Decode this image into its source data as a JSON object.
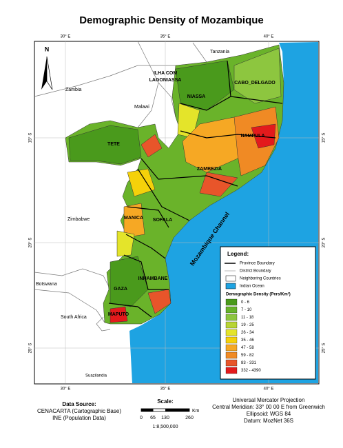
{
  "title": "Demographic Density of Mozambique",
  "graticule": {
    "lon": [
      "30° E",
      "35° E",
      "40° E"
    ],
    "lat": [
      "15° S",
      "20° S",
      "25° S"
    ]
  },
  "countries": {
    "tanzania": "Tanzania",
    "zambia": "Zambia",
    "malawi": "Malawi",
    "zimbabwe": "Zimbabwe",
    "botswana": "Botswana",
    "south_africa": "South Africa",
    "swaziland": "Suazilandia"
  },
  "sea": "Mozambique Channel",
  "north": "N",
  "provinces": {
    "lake_1": "ILHA COM",
    "lake_2": "LAGONIASSA",
    "niassa": "NIASSA",
    "cabo_delgado": "CABO_DELGADO",
    "nampula": "NAMPULA",
    "zambezia": "ZAMBEZIA",
    "tete": "TETE",
    "manica": "MANICA",
    "sofala": "SOFALA",
    "inhambane": "INHAMBANE",
    "gaza": "GAZA",
    "maputo": "MAPUTO"
  },
  "legend": {
    "title": "Legend:",
    "province_boundary": "Province Boundary",
    "district_boundary": "District Boundary",
    "neighboring": "Neighboring Countries",
    "ocean": "Indian Ocean",
    "density_title": "Demographic Density (Pers/Km²)",
    "classes": [
      {
        "label": "0 -   6",
        "color": "#4a9a1c"
      },
      {
        "label": "7 -   10",
        "color": "#67b32a"
      },
      {
        "label": "11 -   18",
        "color": "#8dc63f"
      },
      {
        "label": "19 -   25",
        "color": "#b8d435"
      },
      {
        "label": "26 -   34",
        "color": "#e4e42a"
      },
      {
        "label": "35 -   46",
        "color": "#f5d10a"
      },
      {
        "label": "47 -   58",
        "color": "#f6a824"
      },
      {
        "label": "59 -   82",
        "color": "#f08a24"
      },
      {
        "label": "83 -   331",
        "color": "#e8552a"
      },
      {
        "label": "332 -   4390",
        "color": "#e31a1c"
      }
    ]
  },
  "source": {
    "title": "Data Source:",
    "line1": "CENACARTA (Cartographic Base)",
    "line2": "INE (Population Data)"
  },
  "scale": {
    "title": "Scale:",
    "ticks": [
      "0",
      "65",
      "130",
      "260"
    ],
    "unit": "Km",
    "ratio": "1:8,500,000"
  },
  "projection": {
    "line1": "Universal Mercator Projection",
    "line2": "Central Meridian: 33° 00 00 E from Greenwich",
    "line3": "Ellipsoid: WGS 84",
    "line4": "Datum: MozNet 36S"
  }
}
